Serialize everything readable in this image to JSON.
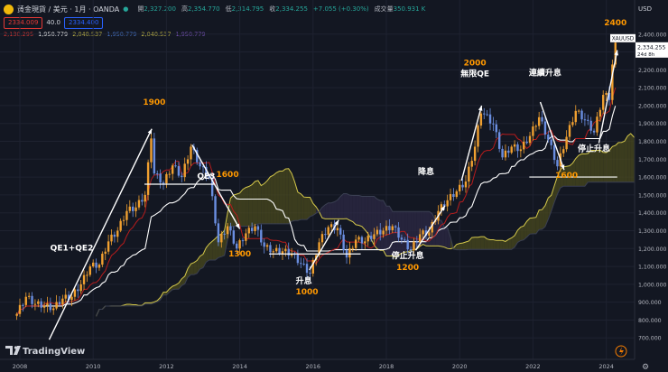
{
  "header": {
    "symbol_title": "黃金現貨 / 美元 · 1月 · OANDA",
    "ohlc": [
      {
        "key": "開",
        "value": "2,327.200"
      },
      {
        "key": "高",
        "value": "2,354.770"
      },
      {
        "key": "低",
        "value": "2,314.795"
      },
      {
        "key": "收",
        "value": "2,334.255"
      },
      {
        "key": "",
        "value": "+7.055 (+0.30%)"
      },
      {
        "key": "成交量",
        "value": "350.931 K"
      }
    ],
    "sell_price": "2334.009",
    "spread": "40.0",
    "buy_price": "2334.400",
    "indicator_values": [
      "2,130.295",
      "1,950.779",
      "2,040.537",
      "1,950.779",
      "2,040.537",
      "1,950.779"
    ],
    "indicator_colors": [
      "#e53935",
      "#ffffff",
      "#d4c84a",
      "#4a7bd4",
      "#d4c84a",
      "#7e57c2"
    ]
  },
  "currency_label": "USD",
  "branding": "TradingView",
  "current_price_tag": {
    "symbol": "XAUUSD",
    "price": "2,334.255",
    "countdown": "24d 8h"
  },
  "colors": {
    "background": "#131722",
    "up": "#f0a030",
    "down": "#6a8ee0",
    "annotation": "#ff9800",
    "tenkan": "#b71c1c",
    "kijun": "#ffffff",
    "cloud_bull": "#4a4a1e",
    "cloud_bear": "#2e2a45",
    "span_a": "#d4c84a",
    "span_b": "#3a3f52"
  },
  "chart_data": {
    "type": "candlestick",
    "x_axis": {
      "ticks": [
        "2008",
        "2010",
        "2012",
        "2014",
        "2016",
        "2018",
        "2020",
        "2022",
        "2024"
      ]
    },
    "y_axis": {
      "ticks": [
        700,
        800,
        900,
        1000,
        1100,
        1200,
        1300,
        1400,
        1500,
        1600,
        1700,
        1800,
        1900,
        2000,
        2100,
        2200,
        2300,
        2400
      ],
      "labels": [
        "700.000",
        "800.000",
        "900.000",
        "1,000.000",
        "1,100.000",
        "1,200.000",
        "1,300.000",
        "1,400.000",
        "1,500.000",
        "1,600.000",
        "1,700.000",
        "1,800.000",
        "1,900.000",
        "2,000.000",
        "2,100.000",
        "2,200.000",
        "2,300.000",
        "2,400.000"
      ],
      "ylim": [
        580,
        2520
      ]
    },
    "series_close": [
      [
        "2007-12",
        834
      ],
      [
        "2008-03",
        930
      ],
      [
        "2008-06",
        890
      ],
      [
        "2008-09",
        880
      ],
      [
        "2008-12",
        865
      ],
      [
        "2009-03",
        920
      ],
      [
        "2009-06",
        930
      ],
      [
        "2009-09",
        1000
      ],
      [
        "2009-12",
        1100
      ],
      [
        "2010-03",
        1110
      ],
      [
        "2010-06",
        1240
      ],
      [
        "2010-09",
        1300
      ],
      [
        "2010-12",
        1410
      ],
      [
        "2011-03",
        1430
      ],
      [
        "2011-06",
        1500
      ],
      [
        "2011-08",
        1830
      ],
      [
        "2011-09",
        1620
      ],
      [
        "2011-12",
        1565
      ],
      [
        "2012-03",
        1665
      ],
      [
        "2012-06",
        1600
      ],
      [
        "2012-09",
        1770
      ],
      [
        "2012-12",
        1660
      ],
      [
        "2013-03",
        1595
      ],
      [
        "2013-06",
        1235
      ],
      [
        "2013-09",
        1325
      ],
      [
        "2013-12",
        1200
      ],
      [
        "2014-03",
        1285
      ],
      [
        "2014-06",
        1325
      ],
      [
        "2014-09",
        1210
      ],
      [
        "2014-12",
        1185
      ],
      [
        "2015-03",
        1185
      ],
      [
        "2015-06",
        1170
      ],
      [
        "2015-09",
        1115
      ],
      [
        "2015-12",
        1060
      ],
      [
        "2016-03",
        1235
      ],
      [
        "2016-06",
        1320
      ],
      [
        "2016-09",
        1315
      ],
      [
        "2016-12",
        1150
      ],
      [
        "2017-03",
        1250
      ],
      [
        "2017-06",
        1240
      ],
      [
        "2017-09",
        1280
      ],
      [
        "2017-12",
        1300
      ],
      [
        "2018-03",
        1325
      ],
      [
        "2018-06",
        1250
      ],
      [
        "2018-09",
        1190
      ],
      [
        "2018-12",
        1280
      ],
      [
        "2019-03",
        1290
      ],
      [
        "2019-06",
        1410
      ],
      [
        "2019-09",
        1470
      ],
      [
        "2019-12",
        1520
      ],
      [
        "2020-03",
        1575
      ],
      [
        "2020-06",
        1770
      ],
      [
        "2020-08",
        1970
      ],
      [
        "2020-12",
        1895
      ],
      [
        "2021-03",
        1710
      ],
      [
        "2021-06",
        1770
      ],
      [
        "2021-09",
        1755
      ],
      [
        "2021-12",
        1830
      ],
      [
        "2022-03",
        1935
      ],
      [
        "2022-06",
        1810
      ],
      [
        "2022-09",
        1660
      ],
      [
        "2022-12",
        1825
      ],
      [
        "2023-03",
        1970
      ],
      [
        "2023-06",
        1920
      ],
      [
        "2023-09",
        1850
      ],
      [
        "2023-12",
        2060
      ],
      [
        "2024-02",
        2045
      ],
      [
        "2024-03",
        2230
      ],
      [
        "2024-04",
        2334
      ]
    ],
    "annotations": [
      {
        "label": "QE1+QE2",
        "kind": "event",
        "x": "2009-06",
        "y": 1190
      },
      {
        "label": "1900",
        "kind": "price",
        "x": "2011-09",
        "y": 2005
      },
      {
        "label": "QE3",
        "kind": "event",
        "x": "2013-02",
        "y": 1590
      },
      {
        "label": "1600",
        "kind": "price",
        "x": "2013-09",
        "y": 1600
      },
      {
        "label": "1300",
        "kind": "price",
        "x": "2014-01",
        "y": 1155
      },
      {
        "label": "升息",
        "kind": "event",
        "x": "2015-10",
        "y": 1005
      },
      {
        "label": "1000",
        "kind": "price",
        "x": "2015-11",
        "y": 945
      },
      {
        "label": "降息",
        "kind": "event",
        "x": "2019-02",
        "y": 1615
      },
      {
        "label": "停止升息",
        "kind": "event",
        "x": "2018-08",
        "y": 1145
      },
      {
        "label": "1200",
        "kind": "price",
        "x": "2018-08",
        "y": 1080
      },
      {
        "label": "2000",
        "kind": "price",
        "x": "2020-06",
        "y": 2225
      },
      {
        "label": "無限QE",
        "kind": "event",
        "x": "2020-06",
        "y": 2165
      },
      {
        "label": "連續升息",
        "kind": "event",
        "x": "2022-05",
        "y": 2170
      },
      {
        "label": "1600",
        "kind": "price",
        "x": "2022-12",
        "y": 1595
      },
      {
        "label": "停止升息",
        "kind": "event",
        "x": "2023-09",
        "y": 1745
      },
      {
        "label": "2400",
        "kind": "price",
        "x": "2024-04",
        "y": 2450
      }
    ],
    "grid": true,
    "legend": "none"
  }
}
